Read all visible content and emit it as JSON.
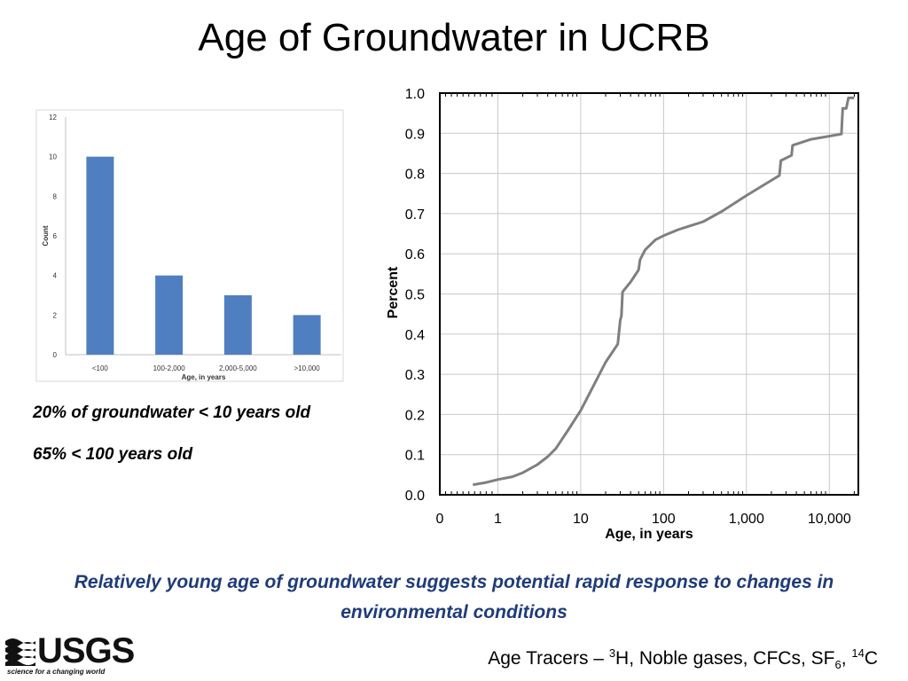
{
  "title": "Age of Groundwater in UCRB",
  "notes": {
    "line1": "20% of groundwater < 10 years old",
    "line2": "65% < 100 years old"
  },
  "callout": "Relatively young age of groundwater suggests potential rapid response to changes in environmental conditions",
  "footer": {
    "tracers_prefix": "Age Tracers – ",
    "tracers_sup1": "3",
    "tracers_mid": "H, Noble gases, CFCs, SF",
    "tracers_sub": "6",
    "tracers_comma": ", ",
    "tracers_sup2": "14",
    "tracers_end": "C"
  },
  "logo": {
    "text": "USGS",
    "tagline": "science for a changing world"
  },
  "colors": {
    "bar": "#4f7fc0",
    "line": "#7f7f7f",
    "callout": "#1f3c78"
  },
  "chart_data": [
    {
      "type": "bar",
      "categories": [
        "<100",
        "100-2,000",
        "2,000-5,000",
        ">10,000"
      ],
      "values": [
        10,
        4,
        3,
        2
      ],
      "xlabel": "Age, in years",
      "ylabel": "Count",
      "ylim": [
        0,
        12
      ],
      "yticks": [
        "0",
        "2",
        "4",
        "6",
        "8",
        "10",
        "12"
      ],
      "grid": false
    },
    {
      "type": "line",
      "x_scale": "log",
      "xlabel": "Age, in years",
      "ylabel": "Percent",
      "ylim": [
        0,
        1.0
      ],
      "yticks": [
        "0.0",
        "0.1",
        "0.2",
        "0.3",
        "0.4",
        "0.5",
        "0.6",
        "0.7",
        "0.8",
        "0.9",
        "1.0"
      ],
      "xticks": [
        "0",
        "1",
        "10",
        "100",
        "1,000",
        "10,000"
      ],
      "grid": true,
      "x": [
        0.5,
        0.7,
        1,
        1.5,
        2,
        3,
        4,
        5,
        7,
        10,
        15,
        20,
        28,
        30,
        31,
        32,
        40,
        50,
        52,
        55,
        60,
        80,
        100,
        150,
        300,
        500,
        1000,
        2500,
        2600,
        3500,
        3600,
        6000,
        14000,
        14500,
        16000,
        17000,
        20000
      ],
      "y": [
        0.025,
        0.03,
        0.038,
        0.045,
        0.055,
        0.075,
        0.095,
        0.115,
        0.16,
        0.21,
        0.28,
        0.33,
        0.375,
        0.435,
        0.445,
        0.505,
        0.53,
        0.56,
        0.585,
        0.595,
        0.61,
        0.635,
        0.645,
        0.66,
        0.68,
        0.705,
        0.745,
        0.795,
        0.832,
        0.845,
        0.87,
        0.885,
        0.898,
        0.962,
        0.962,
        0.988,
        0.988
      ]
    }
  ]
}
